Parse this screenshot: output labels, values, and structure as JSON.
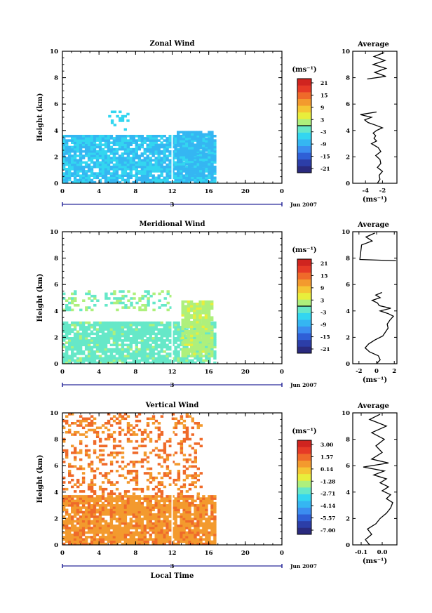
{
  "chart_data": [
    {
      "type": "heatmap",
      "title": "Zonal Wind",
      "ylabel": "Height (km)",
      "xlim": [
        0,
        24
      ],
      "ylim": [
        0,
        10
      ],
      "x_ticks": [
        "0",
        "4",
        "8",
        "12",
        "16",
        "20",
        "0"
      ],
      "y_ticks": [
        "0",
        "2",
        "4",
        "6",
        "8",
        "10"
      ],
      "date_axis": {
        "day_label": "3",
        "month_label": "Jun 2007"
      },
      "colorbar": {
        "unit": "(ms⁻¹)",
        "labels": [
          "21",
          "15",
          "9",
          "3",
          "-3",
          "-9",
          "-15",
          "-21"
        ],
        "zero_line": true
      },
      "regions": [
        {
          "x": [
            5,
            7
          ],
          "y": [
            4.0,
            5.5
          ],
          "value": -4,
          "note": "sparse patches"
        },
        {
          "x": [
            0,
            16.5
          ],
          "y": [
            0,
            3.5
          ],
          "value": -6
        },
        {
          "x": [
            12.5,
            16.5
          ],
          "y": [
            0.5,
            3.8
          ],
          "value": -7
        }
      ],
      "profile": {
        "title": "Average",
        "xlabel": "(ms⁻¹)",
        "x_ticks": [
          "-4",
          "-2"
        ],
        "y_ticks": [
          "0",
          "2",
          "4",
          "6",
          "8",
          "10"
        ],
        "xlim": [
          -5.5,
          -0.3
        ],
        "ylim": [
          0,
          10
        ],
        "height": [
          0.0,
          0.3,
          0.6,
          0.9,
          1.2,
          1.5,
          1.8,
          2.1,
          2.4,
          2.7,
          3.0,
          3.2,
          3.4,
          3.6,
          3.8,
          4.0,
          4.2,
          4.4,
          4.6,
          4.8,
          5.0,
          5.2,
          5.4,
          7.9,
          8.1,
          8.4,
          8.7,
          9.0,
          9.3,
          9.6,
          9.9
        ],
        "value": [
          -2.6,
          -2.3,
          -2.4,
          -2.0,
          -2.6,
          -2.2,
          -2.3,
          -2.8,
          -2.2,
          -2.5,
          -3.3,
          -2.7,
          -3.0,
          -2.8,
          -3.1,
          -2.7,
          -2.0,
          -2.8,
          -3.7,
          -4.1,
          -3.3,
          -4.6,
          -2.7,
          -3.8,
          -1.6,
          -2.9,
          -1.6,
          -3.1,
          -1.7,
          -3.0,
          -1.8
        ]
      }
    },
    {
      "type": "heatmap",
      "title": "Meridional Wind",
      "ylabel": "Height (km)",
      "xlim": [
        0,
        24
      ],
      "ylim": [
        0,
        10
      ],
      "x_ticks": [
        "0",
        "4",
        "8",
        "12",
        "16",
        "20",
        "0"
      ],
      "y_ticks": [
        "0",
        "2",
        "4",
        "6",
        "8",
        "10"
      ],
      "date_axis": {
        "day_label": "3",
        "month_label": "Jun 2007"
      },
      "colorbar": {
        "unit": "(ms⁻¹)",
        "labels": [
          "21",
          "15",
          "9",
          "3",
          "-3",
          "-9",
          "-15",
          "-21"
        ],
        "zero_line": true
      },
      "regions": [
        {
          "x": [
            0,
            12
          ],
          "y": [
            4.0,
            5.4
          ],
          "value": 0,
          "note": "sparse patches"
        },
        {
          "x": [
            0,
            16.5
          ],
          "y": [
            0,
            3.2
          ],
          "value": -1
        },
        {
          "x": [
            13,
            16.5
          ],
          "y": [
            0.5,
            4.8
          ],
          "value": 2
        }
      ],
      "profile": {
        "title": "Average",
        "xlabel": "(ms⁻¹)",
        "x_ticks": [
          "-2",
          "0",
          "2"
        ],
        "y_ticks": [
          "0",
          "2",
          "4",
          "6",
          "8",
          "10"
        ],
        "xlim": [
          -2.7,
          2.3
        ],
        "ylim": [
          0,
          10
        ],
        "height": [
          0.0,
          0.3,
          0.6,
          0.9,
          1.2,
          1.5,
          1.8,
          2.1,
          2.4,
          2.7,
          3.0,
          3.3,
          3.6,
          3.8,
          4.0,
          4.2,
          4.4,
          4.6,
          4.8,
          5.0,
          5.2,
          5.4,
          7.8,
          7.9,
          9.0,
          9.3,
          9.6,
          9.9
        ],
        "value": [
          0.0,
          0.4,
          0.2,
          -0.8,
          -1.3,
          -0.9,
          -0.2,
          0.7,
          1.0,
          1.3,
          1.2,
          1.5,
          1.9,
          1.3,
          0.4,
          1.6,
          0.3,
          0.1,
          -0.5,
          0.4,
          -0.1,
          0.6,
          2.2,
          -1.9,
          -1.7,
          -0.5,
          -1.2,
          -0.2
        ]
      }
    },
    {
      "type": "heatmap",
      "title": "Vertical Wind",
      "xlabel": "Local Time",
      "ylabel": "Height (km)",
      "xlim": [
        0,
        24
      ],
      "ylim": [
        0,
        10
      ],
      "x_ticks": [
        "0",
        "4",
        "8",
        "12",
        "16",
        "20",
        "0"
      ],
      "y_ticks": [
        "0",
        "2",
        "4",
        "6",
        "8",
        "10"
      ],
      "date_axis": {
        "day_label": "3",
        "month_label": "Jun 2007"
      },
      "colorbar": {
        "unit": "(ms⁻¹)",
        "labels": [
          "3.00",
          "1.57",
          "0.14",
          "-1.28",
          "-2.71",
          "-4.14",
          "-5.57",
          "-7.00"
        ],
        "zero_line": false
      },
      "regions": [
        {
          "x": [
            0,
            16.5
          ],
          "y": [
            0,
            3.6
          ],
          "value": 0.7
        },
        {
          "x": [
            0,
            15
          ],
          "y": [
            3.8,
            10
          ],
          "value": 0.9,
          "note": "sparse patches"
        }
      ],
      "profile": {
        "title": "Average",
        "xlabel": "(ms⁻¹)",
        "x_ticks": [
          "-0.1",
          "0.0"
        ],
        "y_ticks": [
          "0",
          "2",
          "4",
          "6",
          "8",
          "10"
        ],
        "xlim": [
          -0.14,
          0.07
        ],
        "ylim": [
          0,
          10
        ],
        "height": [
          0.0,
          0.4,
          0.8,
          1.2,
          1.6,
          2.0,
          2.4,
          2.8,
          3.2,
          3.5,
          3.8,
          4.1,
          4.4,
          4.7,
          5.0,
          5.3,
          5.6,
          5.9,
          6.2,
          6.5,
          7.0,
          7.5,
          8.0,
          8.5,
          9.0,
          9.5,
          9.9
        ],
        "value": [
          -0.06,
          -0.08,
          -0.05,
          -0.07,
          -0.03,
          -0.01,
          0.02,
          0.04,
          0.05,
          0.02,
          0.04,
          0.0,
          0.03,
          -0.01,
          0.02,
          -0.04,
          0.01,
          -0.09,
          0.03,
          -0.05,
          0.0,
          -0.03,
          0.01,
          -0.05,
          0.02,
          -0.06,
          -0.01
        ]
      }
    }
  ]
}
